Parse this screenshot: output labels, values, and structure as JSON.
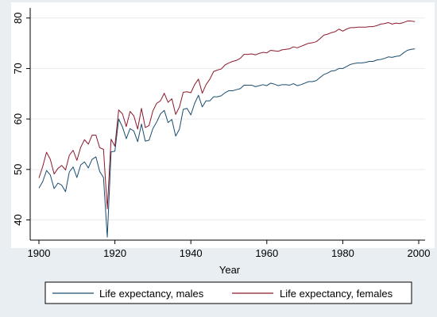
{
  "chart_data": {
    "type": "line",
    "xlabel": "Year",
    "ylabel": "",
    "xlim": [
      1900,
      2000
    ],
    "ylim": [
      36,
      82
    ],
    "x_ticks": [
      "1900",
      "1920",
      "1940",
      "1960",
      "1980",
      "2000"
    ],
    "y_ticks": [
      "40",
      "50",
      "60",
      "70",
      "80"
    ],
    "grid": "horizontal",
    "legend_position": "bottom",
    "colors": {
      "males": "#1a4d6e",
      "females": "#8b1a2b",
      "background": "#e9eef2",
      "plot_bg": "#ffffff",
      "grid": "#e6ebef"
    },
    "x": [
      1900,
      1901,
      1902,
      1903,
      1904,
      1905,
      1906,
      1907,
      1908,
      1909,
      1910,
      1911,
      1912,
      1913,
      1914,
      1915,
      1916,
      1917,
      1918,
      1919,
      1920,
      1921,
      1922,
      1923,
      1924,
      1925,
      1926,
      1927,
      1928,
      1929,
      1930,
      1931,
      1932,
      1933,
      1934,
      1935,
      1936,
      1937,
      1938,
      1939,
      1940,
      1941,
      1942,
      1943,
      1944,
      1945,
      1946,
      1947,
      1948,
      1949,
      1950,
      1951,
      1952,
      1953,
      1954,
      1955,
      1956,
      1957,
      1958,
      1959,
      1960,
      1961,
      1962,
      1963,
      1964,
      1965,
      1966,
      1967,
      1968,
      1969,
      1970,
      1971,
      1972,
      1973,
      1974,
      1975,
      1976,
      1977,
      1978,
      1979,
      1980,
      1981,
      1982,
      1983,
      1984,
      1985,
      1986,
      1987,
      1988,
      1989,
      1990,
      1991,
      1992,
      1993,
      1994,
      1995,
      1996,
      1997,
      1998,
      1999
    ],
    "series": [
      {
        "name": "Life expectancy, males",
        "values": [
          46.3,
          47.6,
          49.8,
          48.9,
          46.2,
          47.3,
          46.9,
          45.6,
          49.5,
          50.5,
          48.4,
          50.9,
          51.5,
          50.3,
          52.0,
          52.5,
          49.6,
          48.4,
          36.6,
          53.5,
          53.6,
          60.0,
          58.4,
          56.1,
          58.1,
          57.6,
          55.5,
          59.0,
          55.6,
          55.8,
          58.1,
          59.4,
          61.0,
          61.7,
          59.3,
          59.9,
          56.6,
          58.0,
          61.9,
          62.1,
          60.8,
          63.1,
          64.7,
          62.4,
          63.6,
          63.6,
          64.4,
          64.4,
          64.6,
          65.2,
          65.6,
          65.6,
          65.8,
          66.0,
          66.7,
          66.7,
          66.7,
          66.4,
          66.6,
          66.8,
          66.6,
          67.1,
          66.9,
          66.6,
          66.8,
          66.8,
          66.7,
          67.0,
          66.6,
          66.8,
          67.1,
          67.4,
          67.4,
          67.6,
          68.2,
          68.8,
          69.1,
          69.5,
          69.6,
          70.0,
          70.0,
          70.4,
          70.8,
          71.0,
          71.1,
          71.1,
          71.2,
          71.4,
          71.4,
          71.7,
          71.8,
          72.0,
          72.3,
          72.2,
          72.4,
          72.5,
          73.1,
          73.6,
          73.8,
          73.9
        ]
      },
      {
        "name": "Life expectancy, females",
        "values": [
          48.3,
          50.6,
          53.4,
          52.0,
          49.1,
          50.2,
          50.8,
          49.9,
          52.8,
          53.8,
          51.8,
          54.4,
          55.9,
          55.0,
          56.8,
          56.8,
          54.3,
          54.0,
          42.2,
          56.0,
          54.6,
          61.8,
          61.0,
          58.5,
          61.5,
          60.6,
          58.0,
          62.1,
          58.3,
          58.7,
          61.6,
          63.1,
          63.6,
          65.1,
          63.3,
          64.0,
          60.9,
          62.4,
          65.3,
          65.4,
          65.2,
          66.8,
          67.9,
          65.1,
          66.8,
          67.9,
          69.4,
          69.7,
          69.9,
          70.7,
          71.1,
          71.4,
          71.6,
          72.0,
          72.8,
          72.8,
          72.9,
          72.7,
          73.0,
          73.2,
          73.1,
          73.6,
          73.5,
          73.4,
          73.7,
          73.8,
          73.9,
          74.3,
          74.1,
          74.4,
          74.7,
          75.0,
          75.1,
          75.3,
          75.9,
          76.6,
          76.8,
          77.1,
          77.3,
          77.8,
          77.4,
          77.8,
          78.1,
          78.1,
          78.2,
          78.2,
          78.2,
          78.3,
          78.3,
          78.5,
          78.8,
          78.9,
          79.1,
          78.8,
          79.0,
          78.9,
          79.1,
          79.4,
          79.4,
          79.3
        ]
      }
    ]
  }
}
